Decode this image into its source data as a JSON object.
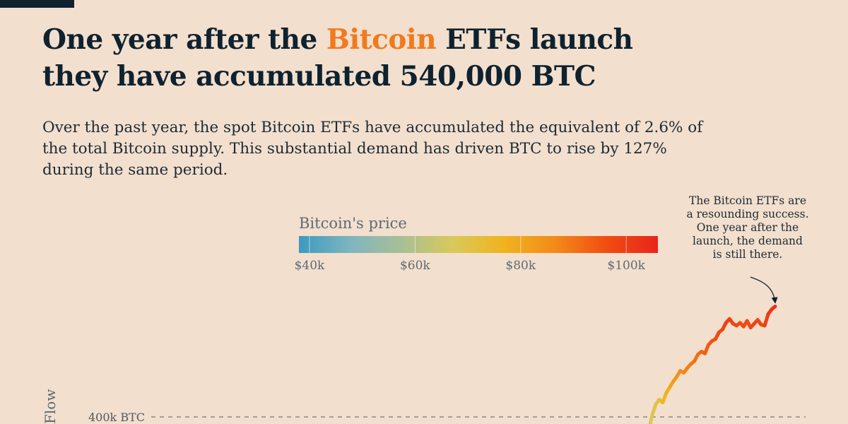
{
  "header": {
    "title_line1_before": "One year after the ",
    "title_highlight": "Bitcoin",
    "title_line1_after": " ETFs launch",
    "title_line2": "they have accumulated 540,000 BTC",
    "highlight_color": "#f07a1e",
    "subtitle": "Over the past year, the spot Bitcoin ETFs have accumulated the equivalent of 2.6% of the total Bitcoin supply. This substantial demand has driven BTC to rise by 127% during the same period."
  },
  "colors": {
    "background": "#f3dfcd",
    "text": "#0e2230",
    "price_scale": [
      "#3b9ac0",
      "#7fb5bf",
      "#a8bf96",
      "#d8c95a",
      "#f0b31f",
      "#f38a18",
      "#f04d12",
      "#e8251b"
    ]
  },
  "chart_data": {
    "type": "line",
    "y_axis_title": "Flow",
    "y_ticks": [
      {
        "value": 400000,
        "label": "400k BTC"
      }
    ],
    "y_range_visible": [
      400000,
      540000
    ],
    "grid_lines": "dashed, at y ticks",
    "color_encoding": {
      "title": "Bitcoin's price",
      "range": [
        38000,
        106000
      ],
      "ticks": [
        {
          "value": 40000,
          "label": "$40k"
        },
        {
          "value": 60000,
          "label": "$60k"
        },
        {
          "value": 80000,
          "label": "$80k"
        },
        {
          "value": 100000,
          "label": "$100k"
        }
      ]
    },
    "series": [
      {
        "points": [
          {
            "flow": 385000,
            "price": 67000
          },
          {
            "flow": 402000,
            "price": 68000
          },
          {
            "flow": 413000,
            "price": 70000
          },
          {
            "flow": 418000,
            "price": 72000
          },
          {
            "flow": 415000,
            "price": 74000
          },
          {
            "flow": 425000,
            "price": 76000
          },
          {
            "flow": 431000,
            "price": 79000
          },
          {
            "flow": 437000,
            "price": 82000
          },
          {
            "flow": 442000,
            "price": 84000
          },
          {
            "flow": 448000,
            "price": 86000
          },
          {
            "flow": 446000,
            "price": 87000
          },
          {
            "flow": 451000,
            "price": 88000
          },
          {
            "flow": 455000,
            "price": 89000
          },
          {
            "flow": 458000,
            "price": 90000
          },
          {
            "flow": 465000,
            "price": 91000
          },
          {
            "flow": 468000,
            "price": 92000
          },
          {
            "flow": 466000,
            "price": 93000
          },
          {
            "flow": 475000,
            "price": 94000
          },
          {
            "flow": 479000,
            "price": 95000
          },
          {
            "flow": 481000,
            "price": 96000
          },
          {
            "flow": 488000,
            "price": 97000
          },
          {
            "flow": 491000,
            "price": 98000
          },
          {
            "flow": 498000,
            "price": 99000
          },
          {
            "flow": 502000,
            "price": 100000
          },
          {
            "flow": 497000,
            "price": 99000
          },
          {
            "flow": 495000,
            "price": 98000
          },
          {
            "flow": 498000,
            "price": 97000
          },
          {
            "flow": 494000,
            "price": 96000
          },
          {
            "flow": 500000,
            "price": 98000
          },
          {
            "flow": 493000,
            "price": 97000
          },
          {
            "flow": 497000,
            "price": 98000
          },
          {
            "flow": 501000,
            "price": 99000
          },
          {
            "flow": 496000,
            "price": 97000
          },
          {
            "flow": 495000,
            "price": 98000
          },
          {
            "flow": 507000,
            "price": 101000
          },
          {
            "flow": 512000,
            "price": 102000
          },
          {
            "flow": 515000,
            "price": 104000
          }
        ]
      }
    ],
    "annotation": {
      "lines": [
        "The Bitcoin ETFs are",
        "a resounding success.",
        "One year after the",
        "launch, the demand",
        "is still there."
      ]
    }
  }
}
